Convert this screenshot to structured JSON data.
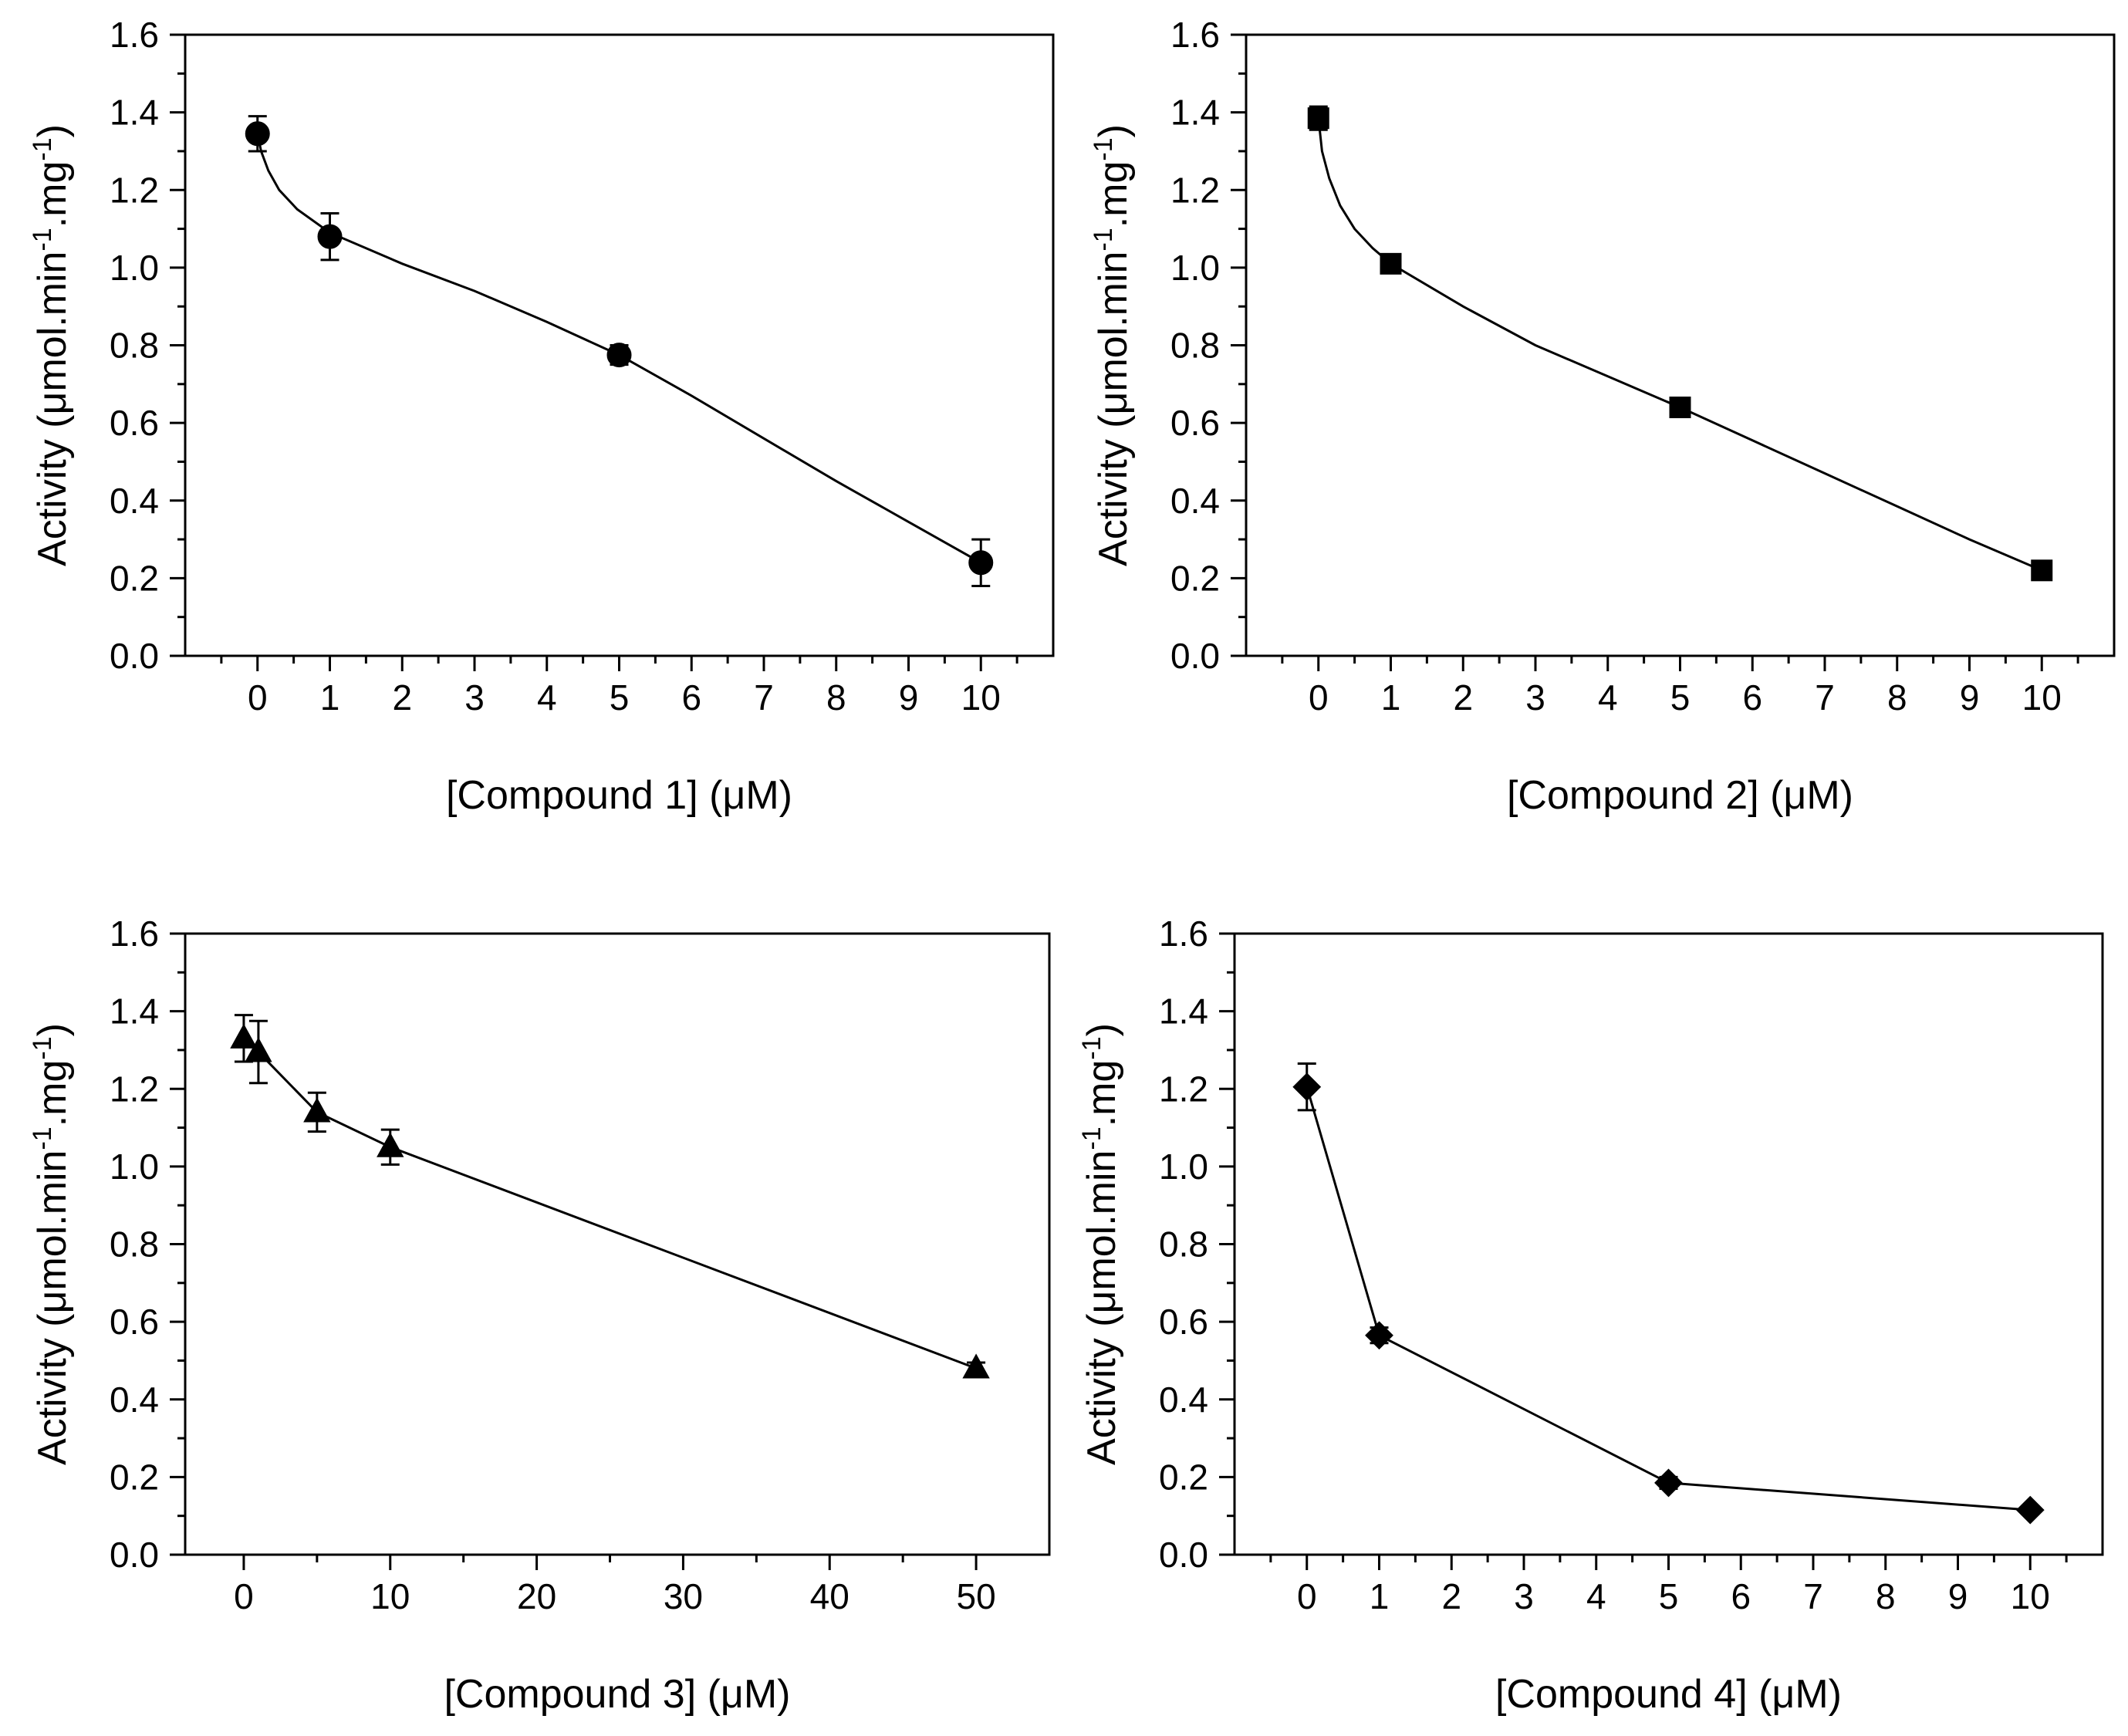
{
  "chart_data": [
    {
      "type": "scatter",
      "marker": "circle",
      "categories": [
        "0",
        "1",
        "2",
        "3",
        "4",
        "5",
        "6",
        "7",
        "8",
        "9",
        "10"
      ],
      "x": [
        0,
        1,
        5,
        10
      ],
      "y": [
        1.345,
        1.08,
        0.775,
        0.24
      ],
      "err": [
        0.045,
        0.06,
        0.025,
        0.06
      ],
      "fit": [
        [
          0,
          1.345
        ],
        [
          0.05,
          1.3
        ],
        [
          0.15,
          1.25
        ],
        [
          0.3,
          1.2
        ],
        [
          0.55,
          1.15
        ],
        [
          1,
          1.09
        ],
        [
          2,
          1.01
        ],
        [
          3,
          0.94
        ],
        [
          4,
          0.86
        ],
        [
          5,
          0.775
        ],
        [
          6,
          0.67
        ],
        [
          7,
          0.56
        ],
        [
          8,
          0.45
        ],
        [
          9,
          0.345
        ],
        [
          10,
          0.24
        ]
      ],
      "xlabel": "[Compound 1] (μM)",
      "ylabel_main": "Activity (μmol.min",
      "ylabel_exp1": "-1",
      "ylabel_mid": ".mg",
      "ylabel_exp2": "-1",
      "ylabel_end": ")",
      "yticks": [
        "0.0",
        "0.2",
        "0.4",
        "0.6",
        "0.8",
        "1.0",
        "1.2",
        "1.4",
        "1.6"
      ],
      "xlim": [
        -1,
        11
      ],
      "ylim": [
        0,
        1.6
      ]
    },
    {
      "type": "scatter",
      "marker": "square",
      "categories": [
        "0",
        "1",
        "2",
        "3",
        "4",
        "5",
        "6",
        "7",
        "8",
        "9",
        "10"
      ],
      "x": [
        0,
        1,
        5,
        10
      ],
      "y": [
        1.385,
        1.01,
        0.64,
        0.22
      ],
      "err": [
        0.03,
        0.015,
        0.012,
        0.012
      ],
      "fit": [
        [
          0,
          1.385
        ],
        [
          0.05,
          1.3
        ],
        [
          0.15,
          1.23
        ],
        [
          0.3,
          1.16
        ],
        [
          0.5,
          1.1
        ],
        [
          0.75,
          1.05
        ],
        [
          1,
          1.01
        ],
        [
          2,
          0.9
        ],
        [
          3,
          0.8
        ],
        [
          4,
          0.72
        ],
        [
          5,
          0.64
        ],
        [
          6,
          0.555
        ],
        [
          7,
          0.47
        ],
        [
          8,
          0.385
        ],
        [
          9,
          0.3
        ],
        [
          10,
          0.22
        ]
      ],
      "xlabel": "[Compound 2] (μM)",
      "ylabel_main": "Activity (μmol.min",
      "ylabel_exp1": "-1",
      "ylabel_mid": ".mg",
      "ylabel_exp2": "-1",
      "ylabel_end": ")",
      "yticks": [
        "0.0",
        "0.2",
        "0.4",
        "0.6",
        "0.8",
        "1.0",
        "1.2",
        "1.4",
        "1.6"
      ],
      "xlim": [
        -1,
        11
      ],
      "ylim": [
        0,
        1.6
      ]
    },
    {
      "type": "scatter",
      "marker": "triangle",
      "categories": [
        "0",
        "10",
        "20",
        "30",
        "40",
        "50"
      ],
      "category_values": [
        0,
        10,
        20,
        30,
        40,
        50
      ],
      "x": [
        0,
        1,
        5,
        10,
        50
      ],
      "y": [
        1.33,
        1.295,
        1.14,
        1.05,
        0.48
      ],
      "err": [
        0.06,
        0.08,
        0.05,
        0.045,
        0.015
      ],
      "fit": [
        [
          0,
          1.33
        ],
        [
          1,
          1.295
        ],
        [
          5,
          1.14
        ],
        [
          10,
          1.05
        ],
        [
          50,
          0.48
        ]
      ],
      "xlabel": "[Compound 3] (μM)",
      "ylabel_main": "Activity (μmol.min",
      "ylabel_exp1": "-1",
      "ylabel_mid": ".mg",
      "ylabel_exp2": "-1",
      "ylabel_end": ")",
      "yticks": [
        "0.0",
        "0.2",
        "0.4",
        "0.6",
        "0.8",
        "1.0",
        "1.2",
        "1.4",
        "1.6"
      ],
      "xlim": [
        -4,
        55
      ],
      "ylim": [
        0,
        1.6
      ]
    },
    {
      "type": "scatter",
      "marker": "diamond",
      "categories": [
        "0",
        "1",
        "2",
        "3",
        "4",
        "5",
        "6",
        "7",
        "8",
        "9",
        "10"
      ],
      "x": [
        0,
        1,
        5,
        10
      ],
      "y": [
        1.205,
        0.565,
        0.185,
        0.115
      ],
      "err": [
        0.06,
        0.02,
        0.015,
        0.01
      ],
      "fit": [
        [
          0,
          1.205
        ],
        [
          1,
          0.565
        ],
        [
          5,
          0.185
        ],
        [
          10,
          0.115
        ]
      ],
      "xlabel": "[Compound 4] (μM)",
      "ylabel_main": "Activity (μmol.min",
      "ylabel_exp1": "-1",
      "ylabel_mid": ".mg",
      "ylabel_exp2": "-1",
      "ylabel_end": ")",
      "yticks": [
        "0.0",
        "0.2",
        "0.4",
        "0.6",
        "0.8",
        "1.0",
        "1.2",
        "1.4",
        "1.6"
      ],
      "xlim": [
        -1,
        11
      ],
      "ylim": [
        0,
        1.6
      ]
    }
  ]
}
